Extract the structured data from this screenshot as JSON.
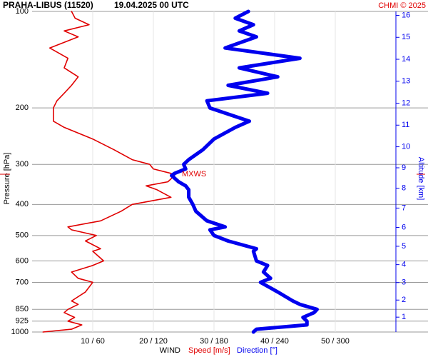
{
  "chart_data": {
    "type": "line",
    "title": "PRAHA-LIBUS (11520)",
    "subtitle": "19.04.2025 00 UTC",
    "credit": "CHMI © 2025",
    "ylabel": "Pressure [hPa]",
    "y2label": "Altitude [km]",
    "xlabel": "WIND",
    "log_y": true,
    "grid": true,
    "pressure": [
      1000,
      980,
      950,
      925,
      900,
      870,
      850,
      820,
      800,
      750,
      700,
      680,
      650,
      620,
      600,
      560,
      550,
      520,
      500,
      480,
      470,
      450,
      420,
      400,
      380,
      360,
      350,
      340,
      325,
      320,
      310,
      300,
      290,
      270,
      250,
      230,
      220,
      200,
      190,
      180,
      170,
      160,
      150,
      140,
      130,
      120,
      115,
      110,
      105,
      100
    ],
    "series": [
      {
        "name": "Speed [m/s]",
        "color": "#e00000",
        "axis": "x",
        "values": [
          1.8,
          6.5,
          8.2,
          5.9,
          7,
          5.3,
          5.9,
          7.6,
          6.5,
          8.8,
          10,
          7.6,
          6.5,
          10,
          11.8,
          10,
          11.3,
          8.8,
          10.6,
          6.5,
          5.9,
          11.3,
          14.7,
          16.5,
          22.9,
          20.6,
          18.8,
          22.4,
          23.5,
          22.9,
          20,
          19.4,
          16.5,
          13.5,
          10,
          5.3,
          3.5,
          3.5,
          4.1,
          5.3,
          6.5,
          7.6,
          5.3,
          5.9,
          2.9,
          7.6,
          5.3,
          9.4,
          7.1,
          6.5
        ]
      },
      {
        "name": "Direction [°]",
        "color": "#0000ee",
        "axis": "x2",
        "values": [
          219,
          222,
          272,
          272,
          268,
          279,
          282,
          265,
          258,
          243,
          226,
          236,
          229,
          233,
          222,
          219,
          222,
          194,
          180,
          176,
          191,
          173,
          162,
          159,
          155,
          155,
          152,
          145,
          138,
          141,
          152,
          150,
          155,
          169,
          180,
          201,
          215,
          176,
          173,
          233,
          194,
          243,
          205,
          265,
          191,
          222,
          205,
          219,
          201,
          214
        ]
      }
    ],
    "xlim": [
      0,
      60
    ],
    "x2lim": [
      0,
      360
    ],
    "xticks": [
      {
        "value": 10,
        "label": "10 / 60"
      },
      {
        "value": 20,
        "label": "20 / 120"
      },
      {
        "value": 30,
        "label": "30 / 180"
      },
      {
        "value": 40,
        "label": "40 / 240"
      },
      {
        "value": 50,
        "label": "50 / 300"
      }
    ],
    "ylim": [
      1000,
      100
    ],
    "yticks": [
      100,
      200,
      300,
      400,
      500,
      600,
      700,
      850,
      925,
      1000
    ],
    "y2ticks": [
      1,
      2,
      3,
      4,
      5,
      6,
      7,
      8,
      9,
      10,
      11,
      12,
      13,
      14,
      15,
      16
    ],
    "annotations": [
      {
        "text": "MXWS",
        "pressure": 322
      }
    ]
  }
}
